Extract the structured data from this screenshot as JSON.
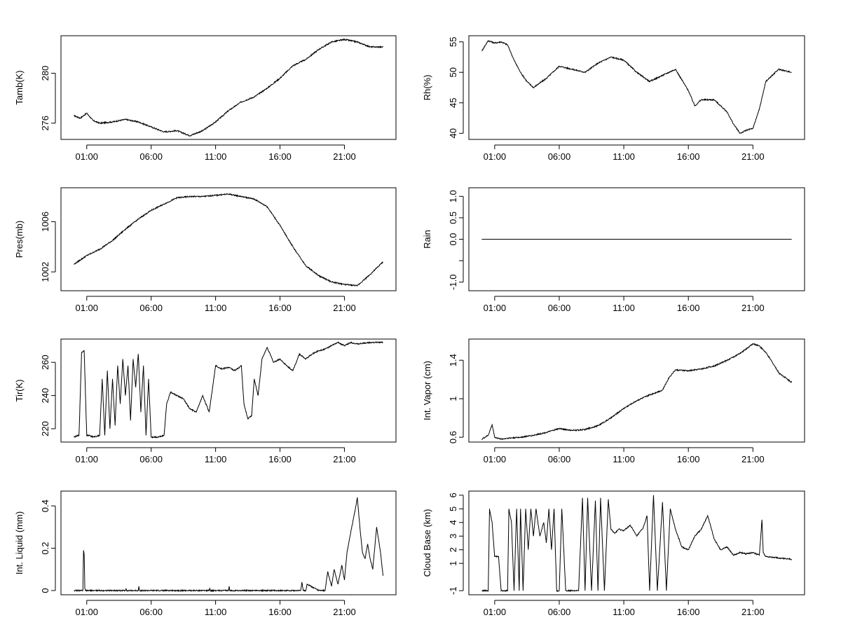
{
  "x_ticks": [
    "01:00",
    "06:00",
    "11:00",
    "16:00",
    "21:00"
  ],
  "x_tick_hours": [
    1,
    6,
    11,
    16,
    21
  ],
  "x_range_hours": [
    -1,
    25
  ],
  "data_hours_range": [
    0.0,
    24.0
  ],
  "chart_data": [
    {
      "type": "line",
      "ylabel": "Tamb(K)",
      "ylim": [
        274.7,
        283.0
      ],
      "yticks": [
        276,
        280
      ],
      "x": [
        0,
        0.5,
        1,
        1.5,
        2,
        3,
        4,
        5,
        6,
        7,
        8,
        9,
        10,
        11,
        12,
        13,
        14,
        15,
        16,
        17,
        18,
        19,
        20,
        21,
        22,
        23,
        24
      ],
      "y": [
        276.6,
        276.4,
        276.8,
        276.2,
        276.0,
        276.1,
        276.3,
        276.1,
        275.7,
        275.3,
        275.4,
        275.0,
        275.4,
        276.1,
        277.0,
        277.7,
        278.1,
        278.8,
        279.6,
        280.6,
        281.1,
        281.9,
        282.5,
        282.7,
        282.5,
        282.1,
        282.1
      ]
    },
    {
      "type": "line",
      "ylabel": "Rh(%)",
      "ylim": [
        39.0,
        56.0
      ],
      "yticks": [
        40,
        45,
        50,
        55
      ],
      "x": [
        0,
        0.5,
        1,
        1.5,
        2,
        2.5,
        3,
        3.5,
        4,
        5,
        6,
        7,
        8,
        9,
        10,
        11,
        12,
        13,
        14,
        15,
        16,
        16.5,
        17,
        18,
        19,
        19.5,
        20,
        20.5,
        21,
        21.5,
        22,
        23,
        24
      ],
      "y": [
        53.5,
        55.2,
        54.8,
        55.0,
        54.5,
        52.0,
        50.0,
        48.5,
        47.5,
        49.0,
        51.0,
        50.5,
        50.0,
        51.5,
        52.5,
        52.0,
        50.0,
        48.5,
        49.5,
        50.5,
        47.0,
        44.5,
        45.5,
        45.5,
        43.5,
        41.5,
        40.0,
        40.5,
        40.8,
        44.0,
        48.5,
        50.5,
        50.0
      ]
    },
    {
      "type": "line",
      "ylabel": "Pres(mb)",
      "ylim": [
        1000.5,
        1008.7
      ],
      "yticks": [
        1002,
        1006
      ],
      "x": [
        0,
        1,
        2,
        3,
        4,
        5,
        6,
        7,
        8,
        9,
        10,
        11,
        12,
        13,
        14,
        15,
        16,
        17,
        18,
        19,
        20,
        21,
        22,
        23,
        24
      ],
      "y": [
        1002.6,
        1003.3,
        1003.8,
        1004.5,
        1005.4,
        1006.2,
        1006.9,
        1007.4,
        1007.9,
        1008.0,
        1008.0,
        1008.1,
        1008.2,
        1008.0,
        1007.8,
        1007.2,
        1005.7,
        1004.0,
        1002.5,
        1001.7,
        1001.2,
        1001.0,
        1000.9,
        1001.8,
        1002.8
      ]
    },
    {
      "type": "line",
      "ylabel": "Rain",
      "ylim": [
        -1.2,
        1.2
      ],
      "yticks": [
        -1.0,
        -0.5,
        0.0,
        0.5,
        1.0
      ],
      "yticklabels": [
        "-1.0",
        "",
        "0.0",
        "0.5",
        "1.0"
      ],
      "x": [
        0,
        24
      ],
      "y": [
        0.0,
        0.0
      ]
    },
    {
      "type": "line",
      "ylabel": "Tir(K)",
      "ylim": [
        212.0,
        274.0
      ],
      "yticks": [
        220,
        240,
        260
      ],
      "x": [
        0,
        0.4,
        0.6,
        0.8,
        1.0,
        1.2,
        1.5,
        2.0,
        2.2,
        2.4,
        2.6,
        2.8,
        3.0,
        3.2,
        3.4,
        3.6,
        3.8,
        4.0,
        4.2,
        4.4,
        4.6,
        4.8,
        5.0,
        5.2,
        5.4,
        5.6,
        5.8,
        6.0,
        6.5,
        7.0,
        7.2,
        7.5,
        8.0,
        8.5,
        9.0,
        9.5,
        10.0,
        10.5,
        11.0,
        11.5,
        12.0,
        12.5,
        13.0,
        13.2,
        13.5,
        13.8,
        14.0,
        14.3,
        14.6,
        15.0,
        15.5,
        16.0,
        16.5,
        17.0,
        17.5,
        18.0,
        18.5,
        19.0,
        19.5,
        20.0,
        20.5,
        21.0,
        21.5,
        22.0,
        23.0,
        24.0
      ],
      "y": [
        215,
        216,
        266,
        267,
        216,
        216,
        215,
        216,
        250,
        216,
        255,
        220,
        250,
        222,
        258,
        235,
        262,
        240,
        258,
        225,
        262,
        245,
        265,
        230,
        258,
        216,
        250,
        215,
        215,
        216,
        235,
        242,
        240,
        238,
        232,
        230,
        240,
        230,
        258,
        256,
        257,
        255,
        258,
        235,
        226,
        228,
        250,
        240,
        262,
        269,
        260,
        262,
        258,
        255,
        265,
        262,
        265,
        267,
        268,
        270,
        272,
        270,
        272,
        271,
        272,
        272
      ]
    },
    {
      "type": "line",
      "ylabel": "Int. Vapor (cm)",
      "ylim": [
        0.55,
        1.62
      ],
      "yticks": [
        0.6,
        1.0,
        1.4
      ],
      "x": [
        0,
        0.5,
        0.8,
        1.0,
        1.5,
        2,
        3,
        4,
        5,
        6,
        7,
        8,
        9,
        10,
        11,
        12,
        13,
        14,
        14.5,
        15,
        16,
        17,
        18,
        19,
        20,
        20.5,
        21,
        21.5,
        22,
        22.5,
        23,
        24
      ],
      "y": [
        0.58,
        0.62,
        0.73,
        0.6,
        0.58,
        0.59,
        0.6,
        0.62,
        0.65,
        0.69,
        0.67,
        0.68,
        0.72,
        0.8,
        0.9,
        0.98,
        1.04,
        1.09,
        1.22,
        1.3,
        1.29,
        1.31,
        1.34,
        1.4,
        1.47,
        1.52,
        1.57,
        1.55,
        1.48,
        1.38,
        1.27,
        1.17
      ]
    },
    {
      "type": "line",
      "ylabel": "Int. Liquid (mm)",
      "ylim": [
        -0.02,
        0.47
      ],
      "yticks": [
        0.0,
        0.2,
        0.4
      ],
      "x": [
        0,
        0.7,
        0.75,
        0.8,
        0.85,
        0.9,
        4,
        4.05,
        4.1,
        5.0,
        5.05,
        5.1,
        10.5,
        10.55,
        10.6,
        12.0,
        12.05,
        12.1,
        17.6,
        17.7,
        17.8,
        18.0,
        18.1,
        19.0,
        19.5,
        19.7,
        20.0,
        20.2,
        20.5,
        20.8,
        21.0,
        21.2,
        21.5,
        21.8,
        22.0,
        22.2,
        22.4,
        22.6,
        22.8,
        23.0,
        23.2,
        23.5,
        23.8,
        24.0
      ],
      "y": [
        0.0,
        0.0,
        0.19,
        0.17,
        0.01,
        0.0,
        0.0,
        0.01,
        0.0,
        0.0,
        0.02,
        0.0,
        0.0,
        0.01,
        0.0,
        0.0,
        0.02,
        0.0,
        0.0,
        0.04,
        0.0,
        0.0,
        0.03,
        0.0,
        0.0,
        0.09,
        0.02,
        0.1,
        0.03,
        0.12,
        0.05,
        0.18,
        0.28,
        0.37,
        0.44,
        0.3,
        0.18,
        0.15,
        0.22,
        0.15,
        0.1,
        0.3,
        0.18,
        0.07
      ]
    },
    {
      "type": "line",
      "ylabel": "Cloud Base (km)",
      "ylim": [
        -1.3,
        6.3
      ],
      "yticks": [
        -1,
        1,
        2,
        3,
        4,
        5,
        6
      ],
      "x": [
        0,
        0.5,
        0.6,
        0.8,
        1.0,
        1.3,
        1.5,
        1.6,
        2.0,
        2.1,
        2.3,
        2.5,
        2.7,
        2.9,
        3.0,
        3.2,
        3.4,
        3.6,
        3.8,
        4.0,
        4.2,
        4.5,
        4.8,
        5.0,
        5.2,
        5.4,
        5.6,
        5.8,
        6.0,
        6.2,
        6.5,
        7.0,
        7.5,
        7.8,
        8.0,
        8.2,
        8.5,
        8.8,
        9.0,
        9.2,
        9.5,
        9.8,
        10.0,
        10.3,
        10.6,
        11.0,
        11.5,
        12.0,
        12.5,
        12.8,
        13.0,
        13.3,
        13.6,
        14.0,
        14.3,
        14.6,
        15.0,
        15.5,
        16.0,
        16.5,
        17.0,
        17.5,
        18.0,
        18.5,
        19.0,
        19.5,
        20.0,
        20.5,
        21.0,
        21.5,
        21.7,
        21.8,
        22.0,
        23.0,
        24.0
      ],
      "y": [
        -1,
        -1,
        5,
        4,
        1.5,
        1.5,
        -1,
        -1,
        -1,
        5,
        4,
        -1,
        5,
        -1,
        5,
        -1,
        5,
        2,
        5,
        3,
        5,
        3,
        4,
        2.5,
        5,
        2,
        5,
        -1,
        -1,
        5,
        -1,
        -1,
        -1,
        5.8,
        -1,
        5.8,
        -1,
        5.6,
        -1,
        5.8,
        -1,
        5.7,
        3.5,
        3.2,
        3.5,
        3.4,
        3.8,
        3.0,
        3.6,
        4.5,
        -1,
        6,
        -1,
        5.5,
        -1,
        5,
        3.5,
        2.2,
        2.0,
        3.0,
        3.5,
        4.5,
        2.8,
        2.0,
        2.2,
        1.6,
        1.8,
        1.7,
        1.8,
        1.6,
        4.2,
        1.8,
        1.5,
        1.4,
        1.3
      ]
    }
  ]
}
